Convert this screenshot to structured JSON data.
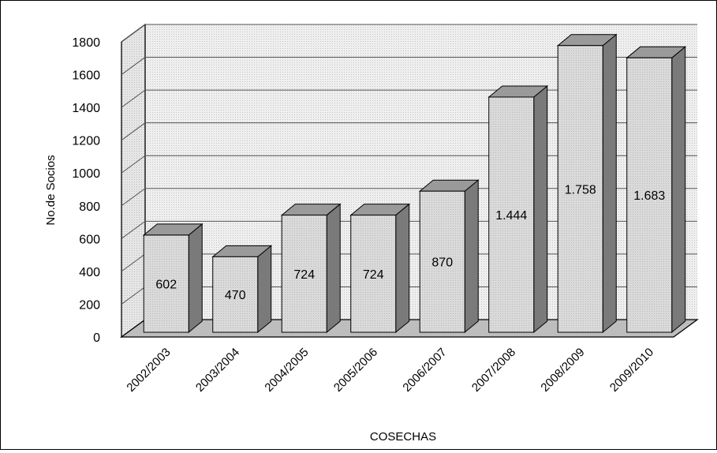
{
  "chart_data": {
    "type": "bar",
    "title": "",
    "xlabel": "COSECHAS",
    "ylabel": "No.de Socios",
    "categories": [
      "2002/2003",
      "2003/2004",
      "2004/2005",
      "2005/2006",
      "2006/2007",
      "2007/2008",
      "2008/2009",
      "2009/2010"
    ],
    "values": [
      602,
      470,
      724,
      724,
      870,
      1444,
      1758,
      1683
    ],
    "data_labels": [
      "602",
      "470",
      "724",
      "724",
      "870",
      "1.444",
      "1.758",
      "1.683"
    ],
    "ylim": [
      0,
      1800
    ],
    "yticks": [
      0,
      200,
      400,
      600,
      800,
      1000,
      1200,
      1400,
      1600,
      1800
    ],
    "grid": true,
    "legend": "none",
    "bar_style": "3d",
    "colors": {
      "bar_face": "#d8d8d8",
      "bar_side": "#7a7a7a",
      "bar_top": "#9a9a9a",
      "floor": "#bdbdbd",
      "wall": "#ededed",
      "gridline": "#555555"
    }
  }
}
